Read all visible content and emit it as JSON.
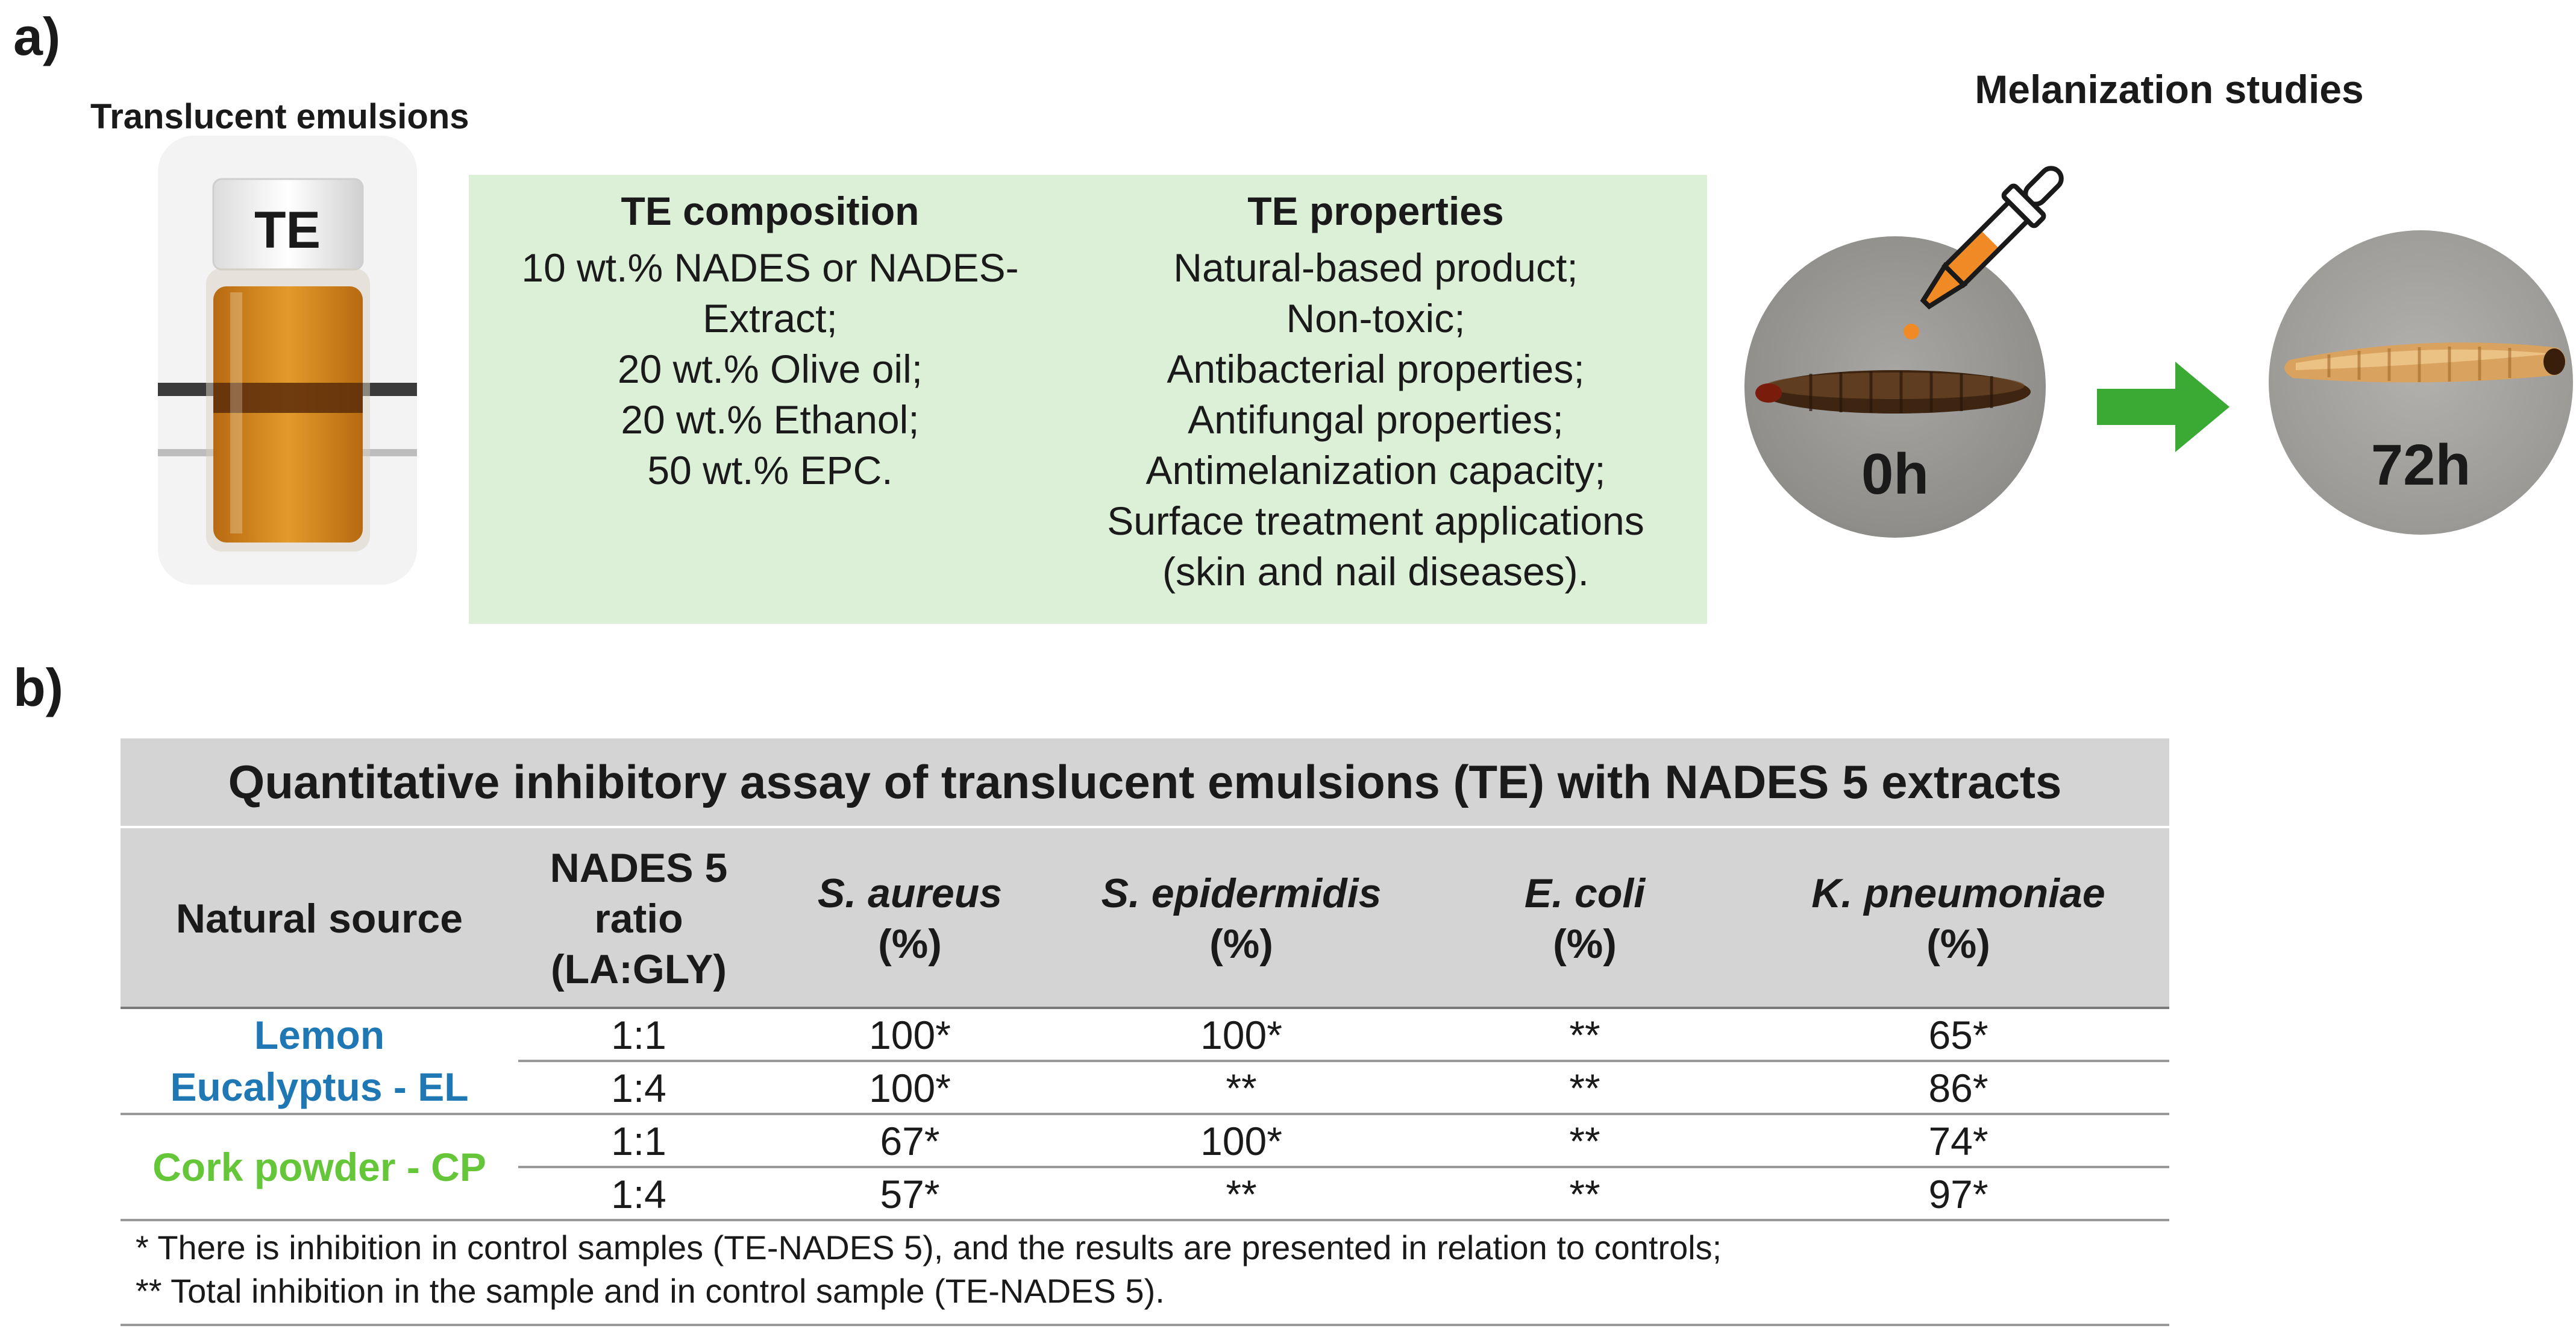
{
  "panel_a": {
    "label": "a)",
    "emulsion_title": "Translucent emulsions",
    "vial_label": "TE",
    "composition": {
      "heading": "TE composition",
      "lines": [
        "10 wt.% NADES or NADES-",
        "Extract;",
        "20 wt.% Olive oil;",
        "20 wt.% Ethanol;",
        "50 wt.% EPC."
      ]
    },
    "properties": {
      "heading": "TE properties",
      "lines": [
        "Natural-based product;",
        "Non-toxic;",
        "Antibacterial properties;",
        "Antifungal properties;",
        "Antimelanization capacity;",
        "Surface treatment applications",
        "(skin and nail diseases)."
      ]
    },
    "melanization": {
      "title": "Melanization studies",
      "time_start": "0h",
      "time_end": "72h"
    },
    "colors": {
      "box_bg": "#dcefd7",
      "arrow": "#3aaa35",
      "dropper": "#f08a24",
      "emulsion": "#d98a1c"
    }
  },
  "panel_b": {
    "label": "b)",
    "table_title": "Quantitative inhibitory assay of translucent emulsions (TE) with NADES 5 extracts",
    "headers": {
      "source": "Natural source",
      "ratio": [
        "NADES 5",
        "ratio",
        "(LA:GLY)"
      ],
      "s_aureus": [
        "S. aureus",
        "(%)"
      ],
      "s_epidermidis": [
        "S. epidermidis",
        "(%)"
      ],
      "e_coli": [
        "E. coli",
        "(%)"
      ],
      "k_pneumoniae": [
        "K. pneumoniae",
        "(%)"
      ]
    },
    "sources": [
      {
        "name_lines": [
          "Lemon",
          "Eucalyptus - EL"
        ],
        "color": "#1f78b4"
      },
      {
        "name_lines": [
          "Cork powder - CP"
        ],
        "color": "#66c63a"
      }
    ],
    "rows": [
      [
        "1:1",
        "100*",
        "100*",
        "**",
        "65*"
      ],
      [
        "1:4",
        "100*",
        "**",
        "**",
        "86*"
      ],
      [
        "1:1",
        "67*",
        "100*",
        "**",
        "74*"
      ],
      [
        "1:4",
        "57*",
        "**",
        "**",
        "97*"
      ]
    ],
    "footnotes": [
      "* There is inhibition in control samples (TE-NADES 5), and the results are presented in relation to controls;",
      "** Total inhibition in the sample and in control sample (TE-NADES 5)."
    ]
  }
}
